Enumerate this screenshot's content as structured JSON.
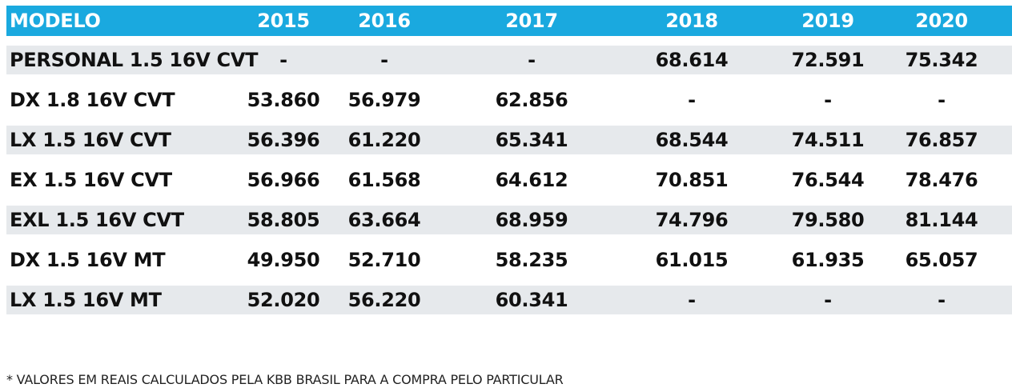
{
  "chart_data": {
    "type": "table",
    "columns": [
      "MODELO",
      "2015",
      "2016",
      "2017",
      "2018",
      "2019",
      "2020"
    ],
    "rows": [
      [
        "PERSONAL 1.5 16V CVT",
        "-",
        "-",
        "-",
        "68.614",
        "72.591",
        "75.342"
      ],
      [
        "DX 1.8 16V CVT",
        "53.860",
        "56.979",
        "62.856",
        "-",
        "-",
        "-"
      ],
      [
        "LX 1.5 16V CVT",
        "56.396",
        "61.220",
        "65.341",
        "68.544",
        "74.511",
        "76.857"
      ],
      [
        "EX 1.5 16V CVT",
        "56.966",
        "61.568",
        "64.612",
        "70.851",
        "76.544",
        "78.476"
      ],
      [
        "EXL 1.5 16V CVT",
        "58.805",
        "63.664",
        "68.959",
        "74.796",
        "79.580",
        "81.144"
      ],
      [
        "DX 1.5 16V MT",
        "49.950",
        "52.710",
        "58.235",
        "61.015",
        "61.935",
        "65.057"
      ],
      [
        "LX 1.5 16V MT",
        "52.020",
        "56.220",
        "60.341",
        "-",
        "-",
        "-"
      ]
    ],
    "footnote": "* VALORES EM REAIS CALCULADOS PELA KBB BRASIL PARA A COMPRA PELO PARTICULAR"
  },
  "colors": {
    "header_background": "#1aa9df",
    "header_text": "#ffffff",
    "shaded_row": "#e6e9ec",
    "text": "#111111"
  }
}
